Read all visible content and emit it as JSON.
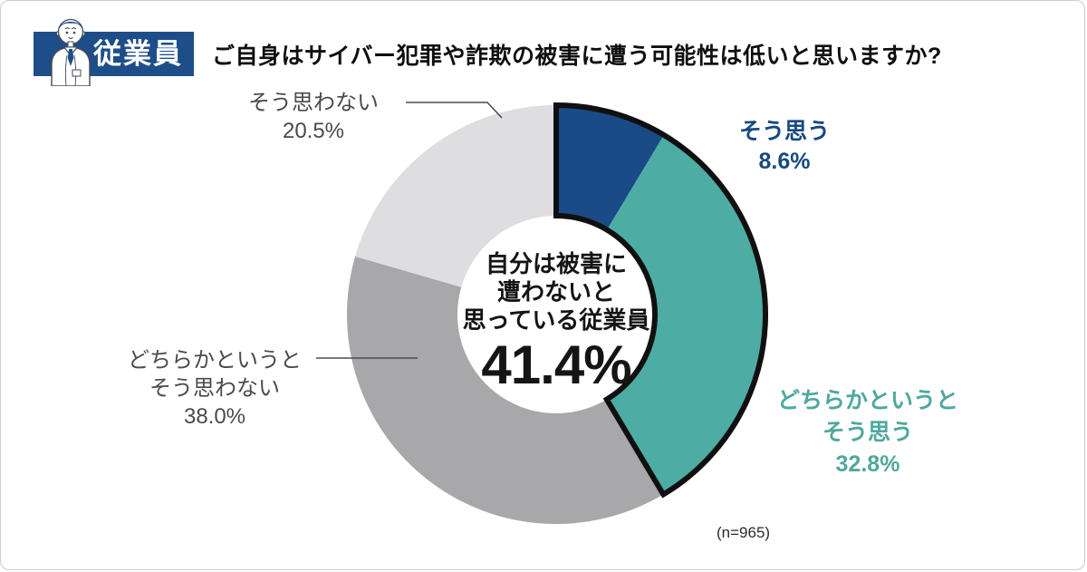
{
  "header": {
    "badge_label": "従業員",
    "icon": "employee-person-icon",
    "badge_color": "#1d4e89"
  },
  "title": "ご自身はサイバー犯罪や詐欺の被害に遭う可能性は低いと思いますか?",
  "chart_data": {
    "type": "pie",
    "donut": true,
    "start_angle": "top",
    "direction": "clockwise",
    "title": "ご自身はサイバー犯罪や詐欺の被害に遭う可能性は低いと思いますか?",
    "categories": [
      "そう思う",
      "どちらかというとそう思う",
      "どちらかというとそう思わない",
      "そう思わない"
    ],
    "values": [
      8.6,
      32.8,
      38.0,
      20.5
    ],
    "unit": "%",
    "slice_colors": [
      "#1a4b86",
      "#4dada4",
      "#a8a8aa",
      "#dedee0"
    ],
    "highlight": {
      "segments": [
        0,
        1
      ],
      "outline_color": "#101010",
      "meaning": "自分は被害に遭わないと思っている従業員",
      "total_value": 41.4
    },
    "center_label": {
      "line1": "自分は被害に",
      "line2": "遭わないと",
      "line3": "思っている従業員",
      "value": "41.4%"
    },
    "sample_note": "(n=965)"
  },
  "callouts": {
    "agree": {
      "line1": "そう思う",
      "value": "8.6%",
      "color": "#17497f"
    },
    "somewhat_agree": {
      "line1": "どちらかというと",
      "line2": "そう思う",
      "value": "32.8%",
      "color": "#4fa89e"
    },
    "somewhat_disagree": {
      "line1": "どちらかというと",
      "line2": "そう思わない",
      "value": "38.0%",
      "color": "#4a4a4a"
    },
    "disagree": {
      "line1": "そう思わない",
      "value": "20.5%",
      "color": "#4a4a4a"
    }
  }
}
